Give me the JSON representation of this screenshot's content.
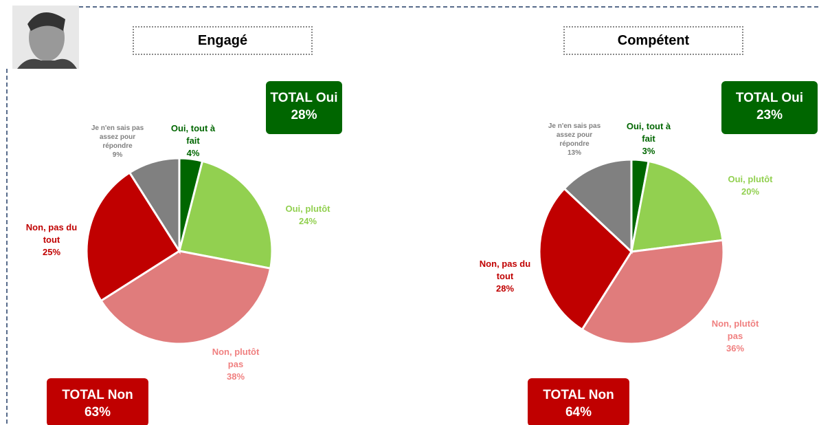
{
  "chart_data": [
    {
      "type": "pie",
      "title": "Engagé",
      "categories": [
        "Oui, tout à fait",
        "Oui, plutôt",
        "Non, plutôt pas",
        "Non, pas du tout",
        "Je n'en sais pas assez pour répondre"
      ],
      "values": [
        4,
        24,
        38,
        25,
        9
      ],
      "value_labels": [
        "4%",
        "24%",
        "38%",
        "25%",
        "9%"
      ],
      "colors": [
        "#006600",
        "#92d050",
        "#e07c7c",
        "#c00000",
        "#808080"
      ],
      "total_yes": {
        "label": "TOTAL Oui",
        "text": "28%"
      },
      "total_no": {
        "label": "TOTAL Non",
        "text": "63%"
      }
    },
    {
      "type": "pie",
      "title": "Compétent",
      "categories": [
        "Oui, tout à fait",
        "Oui, plutôt",
        "Non, plutôt pas",
        "Non, pas du tout",
        "Je n'en sais pas assez pour répondre"
      ],
      "values": [
        3,
        20,
        36,
        28,
        13
      ],
      "value_labels": [
        "3%",
        "20%",
        "36%",
        "28%",
        "13%"
      ],
      "colors": [
        "#006600",
        "#92d050",
        "#e07c7c",
        "#c00000",
        "#808080"
      ],
      "total_yes": {
        "label": "TOTAL Oui",
        "text": "23%"
      },
      "total_no": {
        "label": "TOTAL Non",
        "text": "64%"
      }
    }
  ]
}
